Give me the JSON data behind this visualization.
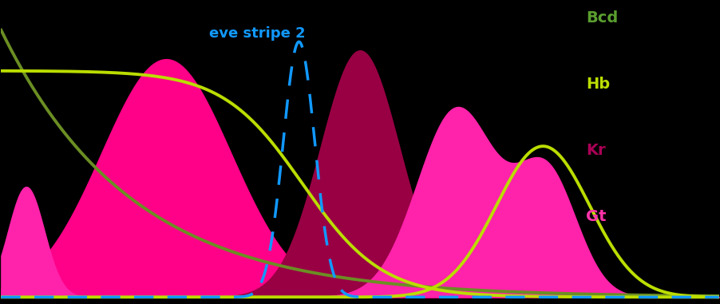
{
  "background_color": "#000000",
  "legend_labels": [
    "Bcd",
    "Hb",
    "Kr",
    "Gt"
  ],
  "legend_colors": [
    "#5a9e2f",
    "#bbdd00",
    "#aa0055",
    "#ff33aa"
  ],
  "eve_stripe2_label": "eve stripe 2",
  "eve_stripe2_color": "#1199ff",
  "bcd_line_color": "#6b8e23",
  "hb_fill_color": "#ff0088",
  "hb_line_color": "#bbdd00",
  "kr_fill_color": "#990044",
  "gt_fill_color": "#ff22aa",
  "gt_line_color": "#bbdd00",
  "xlim": [
    0,
    1
  ],
  "ylim": [
    0,
    1
  ]
}
